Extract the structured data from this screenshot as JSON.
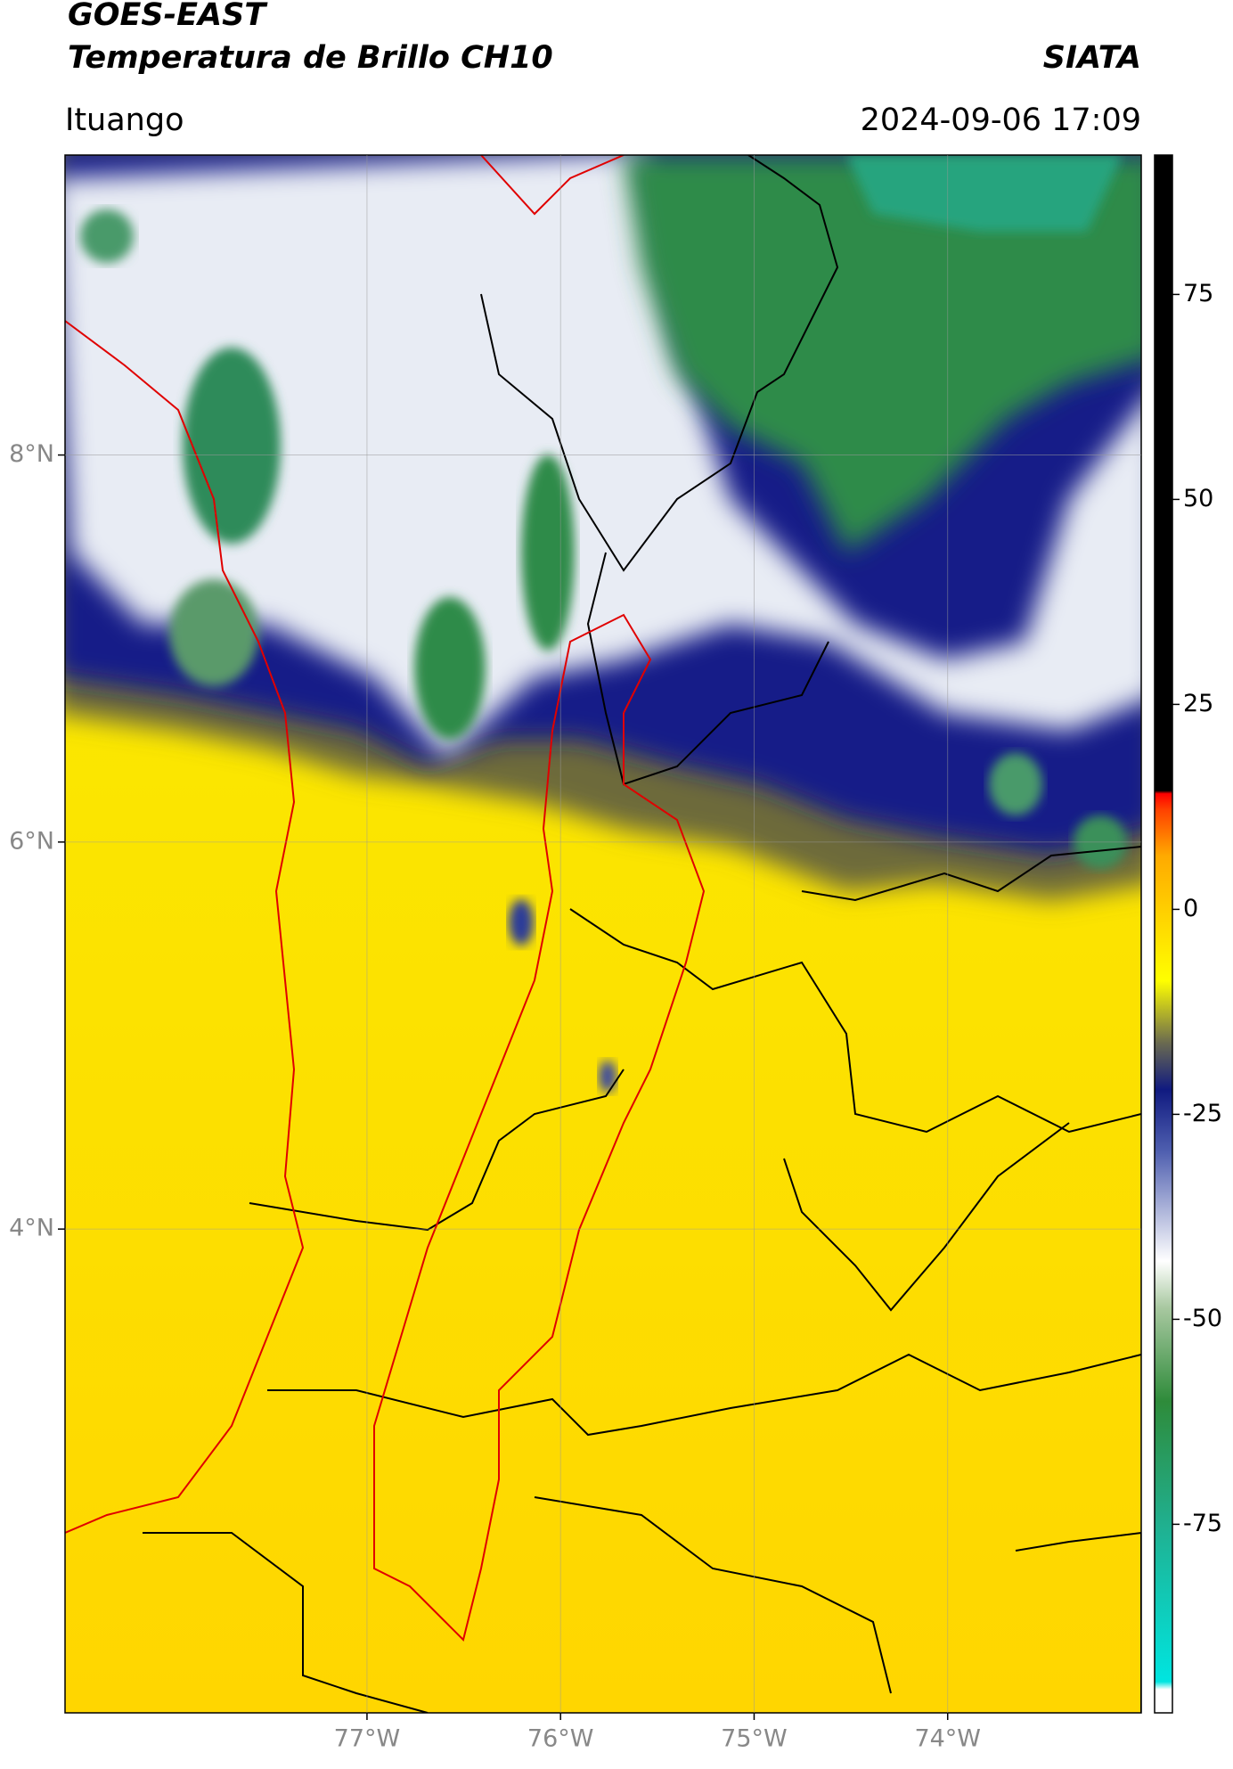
{
  "map": {
    "satellite": "GOES-EAST",
    "title": "Temperatura de Brillo CH10",
    "source": "SIATA",
    "region": "Ituango",
    "timestamp": "2024-09-06 17:09",
    "xlim": [
      -78.56,
      -73.0
    ],
    "ylim": [
      1.5,
      9.55
    ],
    "xticks": [
      {
        "value": -77,
        "label": "77°W"
      },
      {
        "value": -76,
        "label": "76°W"
      },
      {
        "value": -75,
        "label": "75°W"
      },
      {
        "value": -74,
        "label": "74°W"
      }
    ],
    "yticks": [
      {
        "value": 4,
        "label": "4°N"
      },
      {
        "value": 6,
        "label": "6°N"
      },
      {
        "value": 8,
        "label": "8°N"
      }
    ],
    "colorbar": {
      "lim": [
        -98,
        92
      ],
      "ticks": [
        -75,
        -50,
        -25,
        0,
        25,
        50,
        75
      ]
    }
  }
}
